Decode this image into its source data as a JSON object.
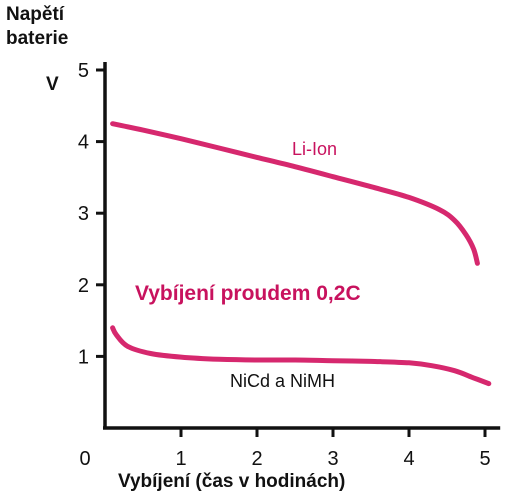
{
  "chart_data": {
    "type": "line",
    "ylabel_line1": "Napětí",
    "ylabel_line2": "baterie",
    "yunit": "V",
    "xlabel": "Vybíjení (čas v hodinách)",
    "annotation": "Vybíjení proudem 0,2C",
    "xlim": [
      0,
      5.2
    ],
    "ylim": [
      0,
      5
    ],
    "x_ticks": [
      0,
      1,
      2,
      3,
      4,
      5
    ],
    "y_ticks": [
      1,
      2,
      3,
      4,
      5
    ],
    "grid": false,
    "legend": "none",
    "colors": {
      "curve": "#d6286e",
      "annotation": "#c8125e",
      "axis": "#111111"
    },
    "series": [
      {
        "name": "Li-Ion",
        "label_color": "#c8125e",
        "points": [
          [
            0.1,
            4.25
          ],
          [
            0.5,
            4.16
          ],
          [
            1.0,
            4.04
          ],
          [
            1.5,
            3.91
          ],
          [
            2.0,
            3.78
          ],
          [
            2.5,
            3.65
          ],
          [
            3.0,
            3.51
          ],
          [
            3.5,
            3.37
          ],
          [
            4.0,
            3.22
          ],
          [
            4.4,
            3.05
          ],
          [
            4.6,
            2.9
          ],
          [
            4.75,
            2.7
          ],
          [
            4.85,
            2.5
          ],
          [
            4.9,
            2.3
          ]
        ]
      },
      {
        "name": "NiCd a NiMH",
        "label_color": "#111111",
        "points": [
          [
            0.1,
            1.4
          ],
          [
            0.15,
            1.3
          ],
          [
            0.3,
            1.14
          ],
          [
            0.6,
            1.04
          ],
          [
            1.0,
            0.99
          ],
          [
            1.5,
            0.96
          ],
          [
            2.0,
            0.95
          ],
          [
            2.5,
            0.95
          ],
          [
            3.0,
            0.94
          ],
          [
            3.5,
            0.93
          ],
          [
            4.0,
            0.91
          ],
          [
            4.3,
            0.87
          ],
          [
            4.6,
            0.8
          ],
          [
            4.85,
            0.7
          ],
          [
            5.05,
            0.62
          ]
        ]
      }
    ]
  }
}
